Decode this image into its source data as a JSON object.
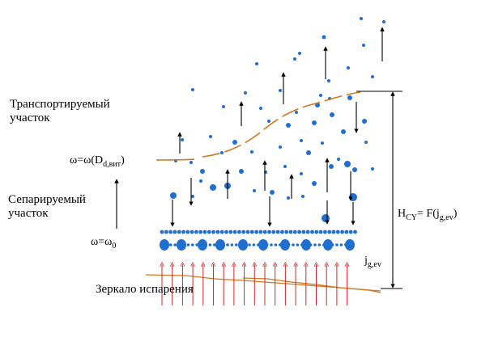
{
  "labels": {
    "transport_zone": [
      "Транспортируемый",
      "участок"
    ],
    "separation_zone": [
      "Сепарируемый",
      "участок"
    ],
    "mirror": "Зеркало испарения",
    "omega_upper_prefix": "ω=ω(D",
    "omega_upper_sub": "d,вит",
    "omega_upper_suffix": ")",
    "omega_lower_prefix": "ω=ω",
    "omega_lower_sub": "0",
    "jg_main": "j",
    "jg_sub": "g,ev",
    "hcy_main": "H",
    "hcy_sub": "CY",
    "hcy_eq": "= F(j",
    "hcy_eq_sub": "g,ev",
    "hcy_close": ")"
  },
  "colors": {
    "droplet": "#1f6fd0",
    "boundary": "#d4761f",
    "mirror_line": "#d4761f",
    "steam_arrow": "#d62828",
    "ink": "#000000"
  }
}
